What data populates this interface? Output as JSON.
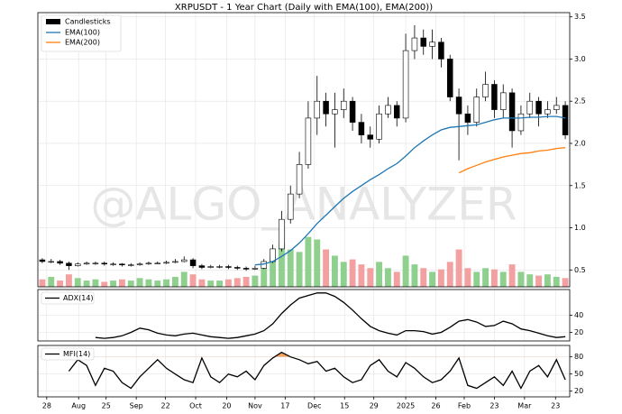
{
  "watermark": "@ALGO_ANALYZER",
  "chart_data": [
    {
      "type": "candlestick",
      "title": "XRPUSDT - 1 Year Chart (Daily with EMA(100), EMA(200))",
      "candle_label": "Candlesticks",
      "x": [
        0,
        1,
        2,
        3,
        4,
        5,
        6,
        7,
        8,
        9,
        10,
        11,
        12,
        13,
        14,
        15,
        16,
        17,
        18,
        19,
        20,
        21,
        22,
        23,
        24,
        25,
        26,
        27,
        28,
        29,
        30,
        31,
        32,
        33,
        34,
        35,
        36,
        37,
        38,
        39,
        40,
        41,
        42,
        43,
        44,
        45,
        46,
        47,
        48,
        49,
        50,
        51,
        52,
        53,
        54,
        55,
        56,
        57,
        58,
        59
      ],
      "xlim": [
        -0.5,
        59.5
      ],
      "open": [
        0.62,
        0.6,
        0.6,
        0.58,
        0.55,
        0.57,
        0.58,
        0.58,
        0.57,
        0.57,
        0.56,
        0.56,
        0.57,
        0.58,
        0.58,
        0.59,
        0.6,
        0.62,
        0.55,
        0.53,
        0.54,
        0.54,
        0.53,
        0.52,
        0.51,
        0.52,
        0.6,
        0.75,
        1.1,
        1.4,
        1.75,
        2.3,
        2.5,
        2.35,
        2.4,
        2.5,
        2.25,
        2.1,
        2.05,
        2.35,
        2.45,
        2.3,
        3.1,
        3.25,
        3.15,
        3.2,
        3.0,
        2.55,
        2.35,
        2.25,
        2.55,
        2.7,
        2.4,
        2.6,
        2.15,
        2.35,
        2.5,
        2.35,
        2.4,
        2.45
      ],
      "high": [
        0.64,
        0.63,
        0.62,
        0.6,
        0.59,
        0.6,
        0.6,
        0.6,
        0.59,
        0.58,
        0.58,
        0.59,
        0.6,
        0.6,
        0.61,
        0.63,
        0.66,
        0.64,
        0.57,
        0.56,
        0.56,
        0.56,
        0.55,
        0.54,
        0.55,
        0.63,
        0.8,
        1.2,
        1.5,
        1.9,
        2.5,
        2.8,
        2.6,
        2.6,
        2.65,
        2.55,
        2.35,
        2.2,
        2.45,
        2.55,
        2.5,
        3.3,
        3.4,
        3.35,
        3.35,
        3.25,
        3.05,
        2.65,
        2.45,
        2.65,
        2.85,
        2.75,
        2.7,
        2.65,
        2.45,
        2.6,
        2.55,
        2.5,
        2.55,
        2.5
      ],
      "low": [
        0.58,
        0.58,
        0.56,
        0.5,
        0.54,
        0.56,
        0.56,
        0.55,
        0.55,
        0.54,
        0.54,
        0.55,
        0.56,
        0.57,
        0.57,
        0.58,
        0.59,
        0.52,
        0.51,
        0.52,
        0.52,
        0.51,
        0.5,
        0.49,
        0.5,
        0.51,
        0.58,
        0.72,
        1.05,
        1.35,
        1.7,
        2.1,
        2.2,
        1.95,
        2.3,
        2.15,
        2.0,
        1.95,
        2.0,
        2.3,
        2.2,
        2.25,
        3.0,
        3.05,
        3.0,
        2.9,
        2.5,
        1.8,
        2.1,
        2.2,
        2.5,
        2.3,
        2.3,
        1.95,
        2.1,
        2.3,
        2.2,
        2.3,
        2.35,
        2.05
      ],
      "close": [
        0.6,
        0.6,
        0.58,
        0.55,
        0.57,
        0.58,
        0.58,
        0.57,
        0.57,
        0.56,
        0.56,
        0.57,
        0.58,
        0.58,
        0.59,
        0.6,
        0.62,
        0.55,
        0.53,
        0.54,
        0.54,
        0.53,
        0.52,
        0.51,
        0.52,
        0.6,
        0.75,
        1.1,
        1.4,
        1.75,
        2.3,
        2.5,
        2.35,
        2.4,
        2.5,
        2.25,
        2.1,
        2.05,
        2.35,
        2.45,
        2.3,
        3.1,
        3.25,
        3.15,
        3.2,
        3.0,
        2.55,
        2.35,
        2.25,
        2.55,
        2.7,
        2.4,
        2.6,
        2.15,
        2.35,
        2.5,
        2.35,
        2.4,
        2.45,
        2.1
      ],
      "volume": [
        6,
        8,
        5,
        10,
        7,
        5,
        6,
        4,
        5,
        6,
        5,
        7,
        6,
        5,
        6,
        8,
        12,
        10,
        6,
        5,
        5,
        6,
        7,
        8,
        9,
        15,
        25,
        35,
        30,
        28,
        40,
        38,
        30,
        25,
        20,
        22,
        18,
        15,
        20,
        15,
        12,
        25,
        18,
        15,
        12,
        14,
        20,
        30,
        15,
        12,
        15,
        14,
        12,
        18,
        12,
        10,
        9,
        10,
        8,
        7
      ],
      "vlim": [
        0,
        220
      ],
      "up_color": "#ffffff",
      "down_color": "#000000",
      "edge_color": "#000000",
      "volume_up_color": "#8fd08f",
      "volume_down_color": "#f2a0a0",
      "series": [
        {
          "name": "EMA(100)",
          "color": "#1f77b4",
          "values": [
            null,
            null,
            null,
            null,
            null,
            null,
            null,
            null,
            null,
            null,
            null,
            null,
            null,
            null,
            null,
            null,
            null,
            null,
            null,
            null,
            null,
            null,
            null,
            null,
            0.56,
            0.57,
            0.6,
            0.66,
            0.73,
            0.82,
            0.93,
            1.05,
            1.15,
            1.25,
            1.35,
            1.43,
            1.5,
            1.57,
            1.63,
            1.7,
            1.76,
            1.85,
            1.95,
            2.03,
            2.1,
            2.16,
            2.19,
            2.2,
            2.21,
            2.22,
            2.25,
            2.28,
            2.3,
            2.3,
            2.3,
            2.31,
            2.31,
            2.32,
            2.32,
            2.3
          ]
        },
        {
          "name": "EMA(200)",
          "color": "#ff7f0e",
          "values": [
            null,
            null,
            null,
            null,
            null,
            null,
            null,
            null,
            null,
            null,
            null,
            null,
            null,
            null,
            null,
            null,
            null,
            null,
            null,
            null,
            null,
            null,
            null,
            null,
            null,
            null,
            null,
            null,
            null,
            null,
            null,
            null,
            null,
            null,
            null,
            null,
            null,
            null,
            null,
            null,
            null,
            null,
            null,
            null,
            null,
            null,
            null,
            1.65,
            1.7,
            1.74,
            1.78,
            1.81,
            1.84,
            1.86,
            1.88,
            1.89,
            1.91,
            1.92,
            1.94,
            1.95
          ]
        }
      ],
      "ylim": [
        0.3,
        3.55
      ],
      "yticks": [
        0.5,
        {
          "value": 1,
          "label": "1.0"
        },
        1.5,
        {
          "value": 2,
          "label": "2.0"
        },
        2.5,
        {
          "value": 3,
          "label": "3.0"
        },
        3.5
      ],
      "grid": true,
      "legend": "upper left"
    },
    {
      "type": "line",
      "series": [
        {
          "name": "ADX(14)",
          "color": "#000000",
          "values": [
            null,
            null,
            null,
            null,
            null,
            null,
            14,
            13,
            14,
            16,
            20,
            25,
            23,
            19,
            17,
            16,
            18,
            19,
            17,
            15,
            14,
            13,
            14,
            16,
            18,
            22,
            30,
            42,
            52,
            60,
            63,
            66,
            66,
            62,
            55,
            46,
            36,
            27,
            22,
            19,
            17,
            22,
            22,
            21,
            18,
            20,
            26,
            33,
            35,
            32,
            27,
            28,
            33,
            30,
            24,
            22,
            19,
            16,
            14,
            15
          ]
        }
      ],
      "ylim": [
        10,
        70
      ],
      "yticks": [
        20,
        40
      ],
      "grid": true,
      "legend": "upper left"
    },
    {
      "type": "line",
      "series": [
        {
          "name": "MFI(14)",
          "color": "#000000",
          "values": [
            null,
            null,
            null,
            55,
            75,
            65,
            30,
            60,
            55,
            35,
            25,
            45,
            60,
            75,
            60,
            50,
            40,
            35,
            78,
            45,
            35,
            50,
            45,
            55,
            40,
            65,
            78,
            88,
            80,
            75,
            68,
            72,
            55,
            60,
            45,
            35,
            40,
            65,
            75,
            55,
            45,
            70,
            60,
            45,
            35,
            40,
            55,
            78,
            30,
            25,
            35,
            45,
            30,
            55,
            25,
            55,
            65,
            45,
            75,
            40
          ]
        }
      ],
      "shade_above": 80,
      "shade_color": "#f5a25d",
      "ylim": [
        10,
        100
      ],
      "yticks": [
        20,
        50,
        80
      ],
      "grid": true,
      "legend": "upper left",
      "xticks": [
        {
          "value": 0.5,
          "label": "28"
        },
        {
          "value": 4.1,
          "label": "Aug"
        },
        {
          "value": 7.2,
          "label": "25"
        },
        {
          "value": 10.6,
          "label": "Sep"
        },
        {
          "value": 13.9,
          "label": "22"
        },
        {
          "value": 17.3,
          "label": "Oct"
        },
        {
          "value": 20.8,
          "label": "20"
        },
        {
          "value": 24,
          "label": "Nov"
        },
        {
          "value": 27.4,
          "label": "17"
        },
        {
          "value": 30.7,
          "label": "Dec"
        },
        {
          "value": 34.1,
          "label": "15"
        },
        {
          "value": 37.4,
          "label": "29"
        },
        {
          "value": 41,
          "label": "2025"
        },
        {
          "value": 44.4,
          "label": "26"
        },
        {
          "value": 47.6,
          "label": "Feb"
        },
        {
          "value": 51,
          "label": "23"
        },
        {
          "value": 54.4,
          "label": "Mar"
        },
        {
          "value": 57.9,
          "label": "23"
        }
      ]
    }
  ]
}
